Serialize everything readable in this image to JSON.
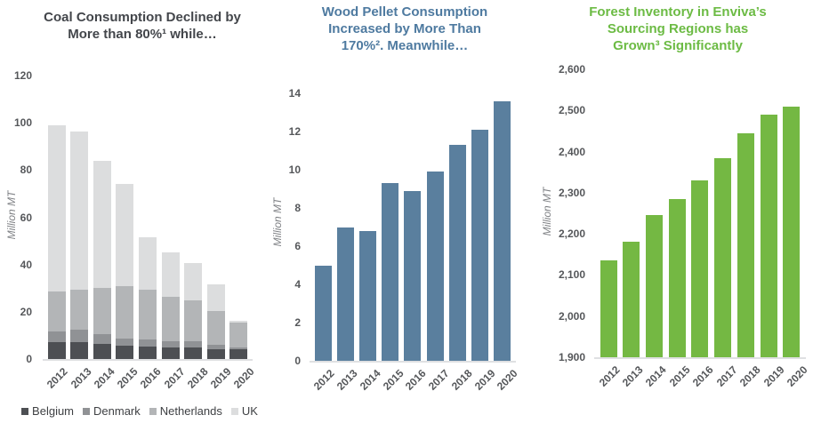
{
  "slide": {
    "background": "#ffffff"
  },
  "chart_data": [
    {
      "id": "coal",
      "type": "stacked-bar",
      "title": "Coal Consumption Declined by\nMore than 80%¹ while…",
      "title_color": "#43464b",
      "ylabel": "Million MT",
      "categories": [
        "2012",
        "2013",
        "2014",
        "2015",
        "2016",
        "2017",
        "2018",
        "2019",
        "2020"
      ],
      "ylim": [
        0,
        120
      ],
      "yticks": [
        {
          "v": 0,
          "label": "0"
        },
        {
          "v": 20,
          "label": "20"
        },
        {
          "v": 40,
          "label": "40"
        },
        {
          "v": 60,
          "label": "60"
        },
        {
          "v": 80,
          "label": "80"
        },
        {
          "v": 100,
          "label": "100"
        },
        {
          "v": 120,
          "label": "120"
        }
      ],
      "series": [
        {
          "name": "Belgium",
          "color": "#4d4f53",
          "values": [
            7,
            7,
            6.5,
            5.5,
            5.2,
            5,
            5,
            4.2,
            4
          ]
        },
        {
          "name": "Denmark",
          "color": "#909295",
          "values": [
            4.5,
            5.5,
            4,
            3,
            3,
            2.5,
            2.5,
            2,
            1
          ]
        },
        {
          "name": "Netherlands",
          "color": "#b3b5b7",
          "values": [
            17,
            17,
            19.5,
            22.5,
            21,
            19,
            17.5,
            14.3,
            10.5
          ]
        },
        {
          "name": "UK",
          "color": "#dcddde",
          "values": [
            70.5,
            67,
            54,
            43,
            22.3,
            18.5,
            15.5,
            11,
            0.5
          ]
        }
      ],
      "totals": [
        99,
        96.5,
        84,
        74,
        51.5,
        45,
        40.5,
        31.5,
        16
      ],
      "legend_position": "bottom",
      "grid": false
    },
    {
      "id": "wood",
      "type": "bar",
      "title": "Wood Pellet Consumption\nIncreased by More Than\n170%². Meanwhile…",
      "title_color": "#4e7aa0",
      "bar_color": "#5a7f9e",
      "ylabel": "Million MT",
      "categories": [
        "2012",
        "2013",
        "2014",
        "2015",
        "2016",
        "2017",
        "2018",
        "2019",
        "2020"
      ],
      "ylim": [
        0,
        14
      ],
      "yticks": [
        {
          "v": 0,
          "label": "0"
        },
        {
          "v": 2,
          "label": "2"
        },
        {
          "v": 4,
          "label": "4"
        },
        {
          "v": 6,
          "label": "6"
        },
        {
          "v": 8,
          "label": "8"
        },
        {
          "v": 10,
          "label": "10"
        },
        {
          "v": 12,
          "label": "12"
        },
        {
          "v": 14,
          "label": "14"
        }
      ],
      "values": [
        5.0,
        7.0,
        6.8,
        9.3,
        8.9,
        9.9,
        11.3,
        12.1,
        13.6
      ],
      "grid": false
    },
    {
      "id": "forest",
      "type": "bar",
      "title": "Forest Inventory in Enviva’s\nSourcing Regions has\nGrown³ Significantly",
      "title_color": "#6cbb44",
      "bar_color": "#74b843",
      "ylabel": "Million MT",
      "categories": [
        "2012",
        "2013",
        "2014",
        "2015",
        "2016",
        "2017",
        "2018",
        "2019",
        "2020"
      ],
      "ylim": [
        1900,
        2600
      ],
      "yticks": [
        {
          "v": 1900,
          "label": "1,900"
        },
        {
          "v": 2000,
          "label": "2,000"
        },
        {
          "v": 2100,
          "label": "2,100"
        },
        {
          "v": 2200,
          "label": "2,200"
        },
        {
          "v": 2300,
          "label": "2,300"
        },
        {
          "v": 2400,
          "label": "2,400"
        },
        {
          "v": 2500,
          "label": "2,500"
        },
        {
          "v": 2600,
          "label": "2,600"
        }
      ],
      "values": [
        2135,
        2180,
        2245,
        2285,
        2330,
        2385,
        2445,
        2490,
        2510
      ],
      "grid": false
    }
  ]
}
